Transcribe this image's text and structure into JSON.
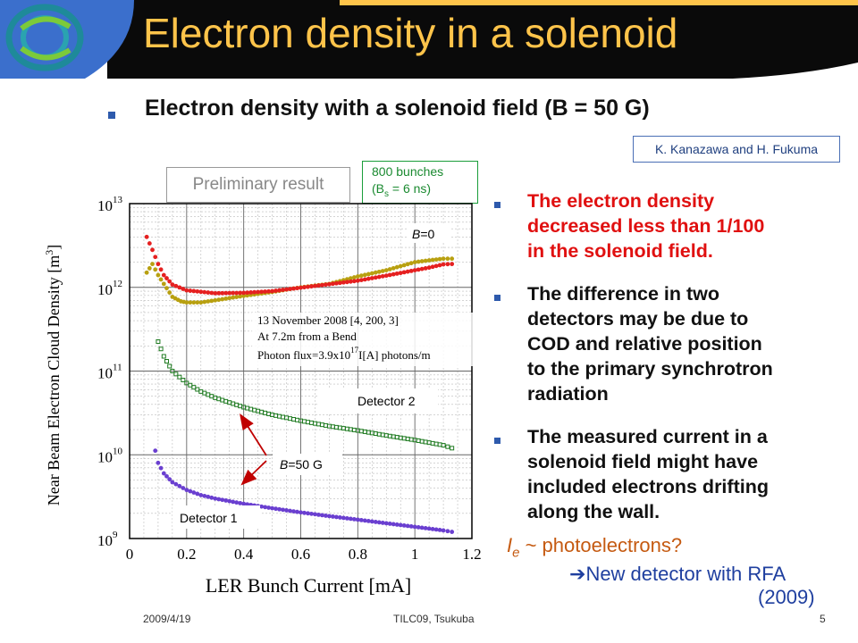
{
  "slide": {
    "title": "Electron density in a solenoid",
    "subtitle": "Electron density with a solenoid field (B = 50 G)",
    "credit": "K. Kanazawa and H. Fukuma",
    "preliminary": "Preliminary result",
    "bunch_line1": "800 bunches",
    "bunch_line2": "(B",
    "bunch_sub": "s",
    "bunch_line2_rest": " = 6 ns)",
    "notes": [
      "The electron density\ndecreased less than 1/100\nin the solenoid field.",
      "The difference in two\ndetectors may be due to\nCOD and relative position\nto the primary synchrotron\nradiation",
      "The measured current in a\nsolenoid field might have\nincluded electrons drifting\nalong the wall."
    ],
    "ie_symbol": "I",
    "ie_sub": "e",
    "ie_text": " ~ photoelectrons?",
    "rfa_arrow": "➔",
    "rfa_text": "New detector with RFA",
    "rfa_year": "(2009)",
    "footer_date": "2009/4/19",
    "footer_event": "TILC09,  Tsukuba",
    "footer_page": "5"
  },
  "colors": {
    "title_text": "#FFC44A",
    "title_bg": "#0a0a0a",
    "accent_blue": "#3B6FCC",
    "bullet": "#2E5AAC",
    "red_note": "#E01010"
  },
  "chart_data": {
    "type": "scatter",
    "xlabel": "LER Bunch Current [mA]",
    "ylabel": "Near Beam Electron Cloud Density [m",
    "ylabel_sup": "3",
    "ylabel_end": "]",
    "xlim": [
      0,
      1.2
    ],
    "ylim_log10": [
      9,
      13
    ],
    "yscale": "log",
    "x_ticks": [
      "0",
      "0.2",
      "0.4",
      "0.6",
      "0.8",
      "1",
      "1.2"
    ],
    "y_ticks": [
      {
        "base": "10",
        "exp": "9"
      },
      {
        "base": "10",
        "exp": "10"
      },
      {
        "base": "10",
        "exp": "11"
      },
      {
        "base": "10",
        "exp": "12"
      },
      {
        "base": "10",
        "exp": "13"
      }
    ],
    "grid": true,
    "annotation_lines": [
      "13 November 2008 [4, 200, 3]",
      "At 7.2m from a Bend",
      "Photon flux=3.9x10",
      "I[A] photons/m"
    ],
    "annotation_exp": "17",
    "labels": {
      "b0_italic": "B",
      "b0_rest": "=0",
      "b50_italic": "B",
      "b50_rest": "=50 G",
      "det1": "Detector 1",
      "det2": "Detector 2"
    },
    "series": [
      {
        "key": "B0_det2",
        "color": "#B8A010",
        "x": [
          0.06,
          0.08,
          0.1,
          0.12,
          0.15,
          0.18,
          0.2,
          0.25,
          0.3,
          0.4,
          0.5,
          0.6,
          0.7,
          0.8,
          0.9,
          1.0,
          1.05,
          1.1,
          1.13
        ],
        "y": [
          1500000000000.0,
          1900000000000.0,
          1400000000000.0,
          1100000000000.0,
          770000000000.0,
          680000000000.0,
          660000000000.0,
          660000000000.0,
          700000000000.0,
          790000000000.0,
          880000000000.0,
          1000000000000.0,
          1100000000000.0,
          1350000000000.0,
          1600000000000.0,
          2000000000000.0,
          2100000000000.0,
          2200000000000.0,
          2200000000000.0
        ]
      },
      {
        "key": "B0_det1",
        "color": "#E52020",
        "x": [
          0.06,
          0.08,
          0.1,
          0.12,
          0.15,
          0.2,
          0.3,
          0.4,
          0.5,
          0.6,
          0.7,
          0.8,
          0.9,
          1.0,
          1.05,
          1.1,
          1.13
        ],
        "y": [
          4000000000000.0,
          2800000000000.0,
          1900000000000.0,
          1400000000000.0,
          1080000000000.0,
          920000000000.0,
          850000000000.0,
          860000000000.0,
          900000000000.0,
          990000000000.0,
          1090000000000.0,
          1200000000000.0,
          1380000000000.0,
          1600000000000.0,
          1720000000000.0,
          1880000000000.0,
          1900000000000.0
        ]
      },
      {
        "key": "B50_det2",
        "color": "#1E7A20",
        "x": [
          0.1,
          0.12,
          0.15,
          0.2,
          0.25,
          0.3,
          0.4,
          0.5,
          0.6,
          0.7,
          0.8,
          0.9,
          1.0,
          1.1,
          1.13
        ],
        "y": [
          225000000000.0,
          150000000000.0,
          100000000000.0,
          72000000000.0,
          57000000000.0,
          48000000000.0,
          37000000000.0,
          30000000000.0,
          25500000000.0,
          22000000000.0,
          19500000000.0,
          17000000000.0,
          15000000000.0,
          13000000000.0,
          12000000000.0
        ]
      },
      {
        "key": "B50_det1",
        "color": "#6A3FD0",
        "x": [
          0.09,
          0.1,
          0.12,
          0.15,
          0.2,
          0.25,
          0.3,
          0.4,
          0.5,
          0.6,
          0.7,
          0.8,
          0.9,
          1.0,
          1.1,
          1.13
        ],
        "y": [
          11200000000.0,
          8000000000.0,
          6000000000.0,
          4700000000.0,
          3800000000.0,
          3300000000.0,
          3000000000.0,
          2600000000.0,
          2300000000.0,
          2050000000.0,
          1850000000.0,
          1680000000.0,
          1520000000.0,
          1380000000.0,
          1250000000.0,
          1200000000.0
        ]
      }
    ]
  }
}
